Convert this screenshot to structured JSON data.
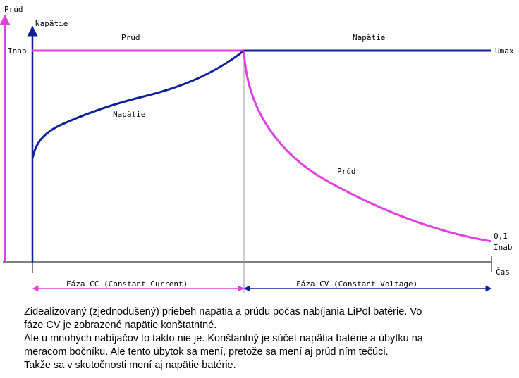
{
  "colors": {
    "current": "#e040e0",
    "voltage": "#10209a",
    "axis": "#000000",
    "divider": "#999999"
  },
  "labels": {
    "y_current_axis": "Prúd",
    "y_voltage_axis": "Napätie",
    "inab": "Inab",
    "umax": "Umax",
    "top_current": "Prúd",
    "top_voltage": "Napätie",
    "curve_voltage": "Napätie",
    "curve_current": "Prúd",
    "end_value": "0,1",
    "end_unit": "Inab",
    "x_axis": "Čas",
    "phase_cc": "Fáza CC (Constant Current)",
    "phase_cv": "Fáza CV (Constant Voltage)"
  },
  "caption": [
    "Zidealizovaný (zjednodušený) priebeh napätia a prúdu počas nabíjania LiPol batérie. Vo",
    "fáze CV je zobrazené napätie konštatntné.",
    "Ale u mnohých nabíjačov to takto nie je. Konštantný je súčet napätia batérie a úbytku na",
    "meracom bočníku. Ale tento úbytok sa mení, pretože sa mení aj prúd ním tečúci.",
    "Takže sa v skutočnosti mení aj napätie batérie."
  ]
}
